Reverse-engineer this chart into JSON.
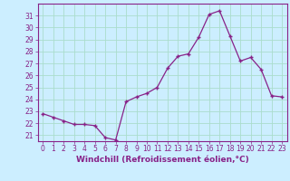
{
  "x": [
    0,
    1,
    2,
    3,
    4,
    5,
    6,
    7,
    8,
    9,
    10,
    11,
    12,
    13,
    14,
    15,
    16,
    17,
    18,
    19,
    20,
    21,
    22,
    23
  ],
  "y": [
    22.8,
    22.5,
    22.2,
    21.9,
    21.9,
    21.8,
    20.8,
    20.6,
    23.8,
    24.2,
    24.5,
    25.0,
    26.6,
    27.6,
    27.8,
    29.2,
    31.1,
    31.4,
    29.3,
    27.2,
    27.5,
    26.5,
    24.3,
    24.2
  ],
  "line_color": "#882288",
  "marker": "+",
  "bg_color": "#cceeff",
  "grid_color": "#aaddcc",
  "xlabel": "Windchill (Refroidissement éolien,°C)",
  "xlabel_color": "#882288",
  "ylabel_ticks": [
    21,
    22,
    23,
    24,
    25,
    26,
    27,
    28,
    29,
    30,
    31
  ],
  "xticks": [
    0,
    1,
    2,
    3,
    4,
    5,
    6,
    7,
    8,
    9,
    10,
    11,
    12,
    13,
    14,
    15,
    16,
    17,
    18,
    19,
    20,
    21,
    22,
    23
  ],
  "ylim": [
    20.5,
    32.0
  ],
  "xlim": [
    -0.5,
    23.5
  ],
  "tick_color": "#882288",
  "border_color": "#882288",
  "tick_fontsize": 5.5,
  "xlabel_fontsize": 6.5
}
